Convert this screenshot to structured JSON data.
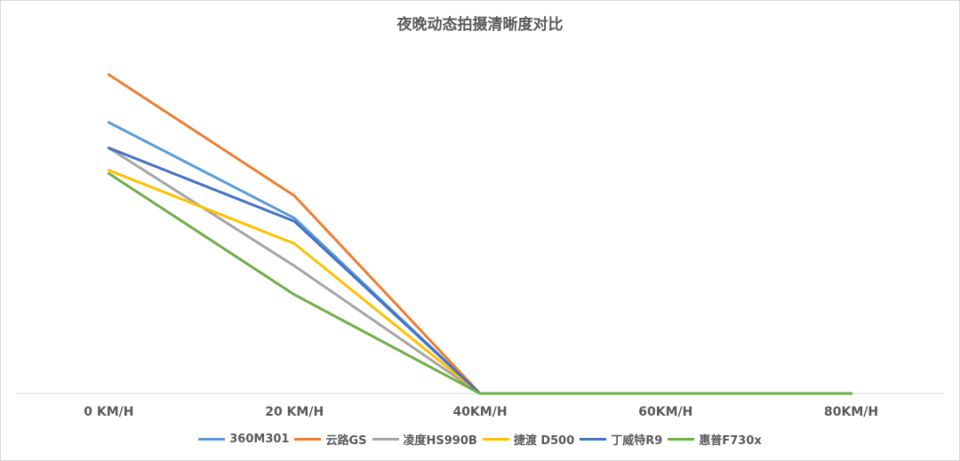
{
  "chart_data": {
    "type": "line",
    "title": "夜晚动态拍摄清晰度对比",
    "xlabel": "",
    "ylabel": "",
    "categories": [
      "0 KM/H",
      "20 KM/H",
      "40KM/H",
      "60KM/H",
      "80KM/H"
    ],
    "ylim": [
      0,
      100
    ],
    "grid": false,
    "legend_position": "bottom",
    "series": [
      {
        "name": "360M301",
        "color": "#5b9bd5",
        "values": [
          85,
          55,
          0,
          0,
          0
        ]
      },
      {
        "name": "云路GS",
        "color": "#ed7d31",
        "values": [
          100,
          62,
          0,
          0,
          0
        ]
      },
      {
        "name": "凌度HS990B",
        "color": "#a5a5a5",
        "values": [
          77,
          40,
          0,
          0,
          0
        ]
      },
      {
        "name": "捷渡 D500",
        "color": "#ffc000",
        "values": [
          70,
          47,
          0,
          0,
          0
        ]
      },
      {
        "name": "丁威特R9",
        "color": "#4472c4",
        "values": [
          77,
          54,
          0,
          0,
          0
        ]
      },
      {
        "name": "惠普F730x",
        "color": "#70ad47",
        "values": [
          69,
          31,
          0,
          0,
          0
        ]
      }
    ]
  }
}
